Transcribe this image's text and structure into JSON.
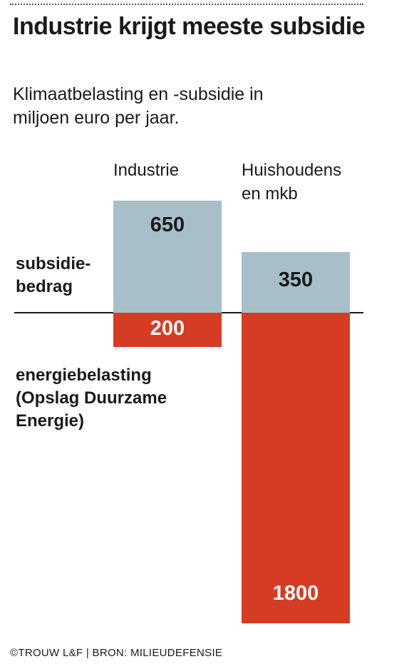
{
  "header": {
    "title": "Industrie krijgt meeste subsidie",
    "subtitle": "Klimaatbelasting en -subsidie in miljoen euro per jaar."
  },
  "labels": {
    "subsidy": "subsidie-\nbedrag",
    "tax": "energiebelasting\n(Opslag Duurzame\nEnergie)"
  },
  "footer": "©TROUW L&F | BRON: MILIEUDEFENSIE",
  "colors": {
    "subsidy": "#a6bfc9",
    "tax": "#d63c24"
  },
  "chart_data": {
    "type": "bar",
    "title": "Industrie krijgt meeste subsidie",
    "subtitle": "Klimaatbelasting en -subsidie in miljoen euro per jaar.",
    "categories": [
      "Industrie",
      "Huishoudens\nen mkb"
    ],
    "series": [
      {
        "name": "subsidiebedrag",
        "values": [
          650,
          350
        ],
        "direction": "up"
      },
      {
        "name": "energiebelasting (Opslag Duurzame Energie)",
        "values": [
          200,
          1800
        ],
        "direction": "down"
      }
    ],
    "xlabel": "",
    "ylabel": "",
    "grid": false,
    "legend": "inline-left"
  }
}
